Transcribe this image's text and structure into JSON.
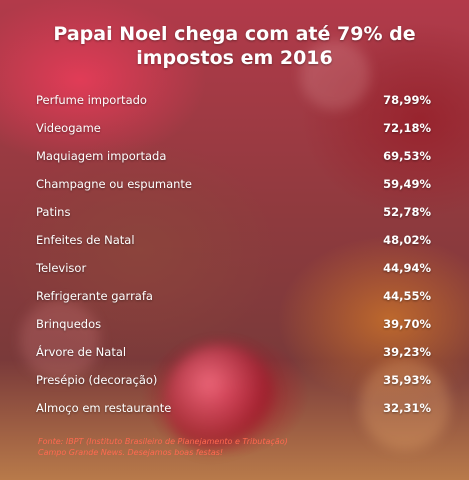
{
  "title": "Papai Noel chega com até 79% de impostos em 2016",
  "title_line1": "Papai Noel chega com até 79% de",
  "title_line2": "impostos em 2016",
  "footnote_line1": "Fonte: IBPT (Instituto Brasileiro de Planejamento e Tributação)",
  "footnote_line2": "Campo Grande News. Desejamos boas festas!",
  "colors": {
    "text": "#ffffff",
    "footnote": "#ff6a50"
  },
  "chart_data": {
    "type": "table",
    "title": "Papai Noel chega com até 79% de impostos em 2016",
    "categories": [
      "Perfume importado",
      "Videogame",
      "Maquiagem importada",
      "Champagne ou espumante",
      "Patins",
      "Enfeites de Natal",
      "Televisor",
      "Refrigerante garrafa",
      "Brinquedos",
      "Árvore de Natal",
      "Presépio (decoração)",
      "Almoço em restaurante"
    ],
    "values": [
      78.99,
      72.18,
      69.53,
      59.49,
      52.78,
      48.02,
      44.94,
      44.55,
      39.7,
      39.23,
      35.93,
      32.31
    ],
    "value_labels": [
      "78,99%",
      "72,18%",
      "69,53%",
      "59,49%",
      "52,78%",
      "48,02%",
      "44,94%",
      "44,55%",
      "39,70%",
      "39,23%",
      "35,93%",
      "32,31%"
    ]
  }
}
